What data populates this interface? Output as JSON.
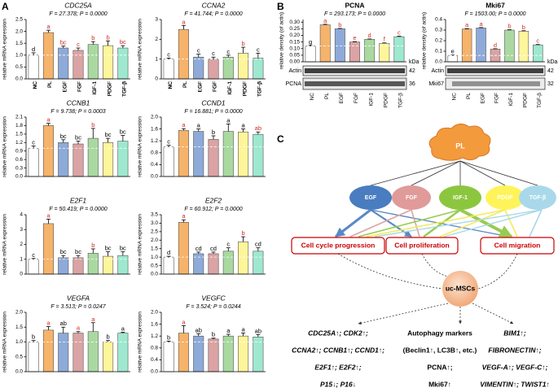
{
  "panel_labels": [
    "A",
    "B",
    "C"
  ],
  "chart_data": [
    {
      "type": "bar",
      "title": "CDC25A",
      "subtitle": "F = 27.378; P = 0.0000",
      "y_label": "relative mRNA expression",
      "categories": [
        "NC",
        "PL",
        "EGF",
        "FGF",
        "IGF-1",
        "PDGF",
        "TGF-β"
      ],
      "colors": [
        "#ffffff",
        "#f5b36b",
        "#8eaad9",
        "#dba3a3",
        "#a9d9a0",
        "#fff59a",
        "#9ee8d0"
      ],
      "values": [
        1.0,
        1.95,
        1.3,
        1.2,
        1.45,
        1.4,
        1.3
      ],
      "errors": [
        0.1,
        0.1,
        0.08,
        0.1,
        0.12,
        0.2,
        0.1
      ],
      "annotations": [
        "d",
        "a",
        "bc",
        "c",
        "b",
        "b",
        "bc"
      ],
      "annotation_colors": [
        "#000",
        "#d62728",
        "#d62728",
        "#d62728",
        "#d62728",
        "#d62728",
        "#d62728"
      ],
      "ylim": [
        0,
        2.5
      ],
      "yticks": [
        {
          "value": 0,
          "label": "0.0"
        },
        0.5,
        {
          "value": 1,
          "label": "1.0"
        },
        1.5,
        {
          "value": 2,
          "label": "2.0"
        },
        2.5
      ]
    },
    {
      "type": "bar",
      "title": "CCNA2",
      "subtitle": "F = 41.744; P = 0.0000",
      "y_label": "relative mRNA expression",
      "categories": [
        "NC",
        "PL",
        "EGF",
        "FGF",
        "IGF-1",
        "PDGF",
        "TGF-β"
      ],
      "colors": [
        "#ffffff",
        "#f5b36b",
        "#8eaad9",
        "#dba3a3",
        "#a9d9a0",
        "#fff59a",
        "#9ee8d0"
      ],
      "values": [
        1.0,
        2.5,
        1.1,
        1.0,
        1.1,
        1.3,
        1.05
      ],
      "errors": [
        0.05,
        0.2,
        0.15,
        0.1,
        0.1,
        0.3,
        0.25
      ],
      "annotations": [
        "c",
        "a",
        "c",
        "c",
        "c",
        "b",
        "c"
      ],
      "annotation_colors": [
        "#000",
        "#d62728",
        "#000",
        "#000",
        "#000",
        "#d62728",
        "#000"
      ],
      "ylim": [
        0,
        3
      ],
      "yticks": [
        0,
        1,
        2,
        3
      ]
    },
    {
      "type": "bar",
      "title": "CCNB1",
      "subtitle": "F = 9.738; P = 0.0003",
      "y_label": "relative mRNA expression",
      "categories": [
        "NC",
        "PL",
        "EGF",
        "FGF",
        "IGF-1",
        "PDGF",
        "TGF-β"
      ],
      "colors": [
        "#ffffff",
        "#f5b36b",
        "#8eaad9",
        "#dba3a3",
        "#a9d9a0",
        "#fff59a",
        "#9ee8d0"
      ],
      "values": [
        1.0,
        1.8,
        1.2,
        1.15,
        1.35,
        1.2,
        1.25
      ],
      "errors": [
        0.08,
        0.08,
        0.1,
        0.1,
        0.35,
        0.15,
        0.2
      ],
      "annotations": [
        "c",
        "a",
        "bc",
        "bc",
        "b",
        "bc",
        "bc"
      ],
      "annotation_colors": [
        "#000",
        "#d62728",
        "#000",
        "#000",
        "#d62728",
        "#000",
        "#000"
      ],
      "ylim": [
        0,
        2.1
      ],
      "yticks": [
        {
          "value": 0,
          "label": "0.0"
        },
        0.3,
        0.6,
        0.9,
        1.2,
        1.5,
        1.8,
        2.1
      ]
    },
    {
      "type": "bar",
      "title": "CCND1",
      "subtitle": "F = 16.881; P = 0.0000",
      "y_label": "relative mRNA expression",
      "categories": [
        "NC",
        "PL",
        "EGF",
        "FGF",
        "IGF-1",
        "PDGF",
        "TGF-β"
      ],
      "colors": [
        "#ffffff",
        "#f5b36b",
        "#8eaad9",
        "#dba3a3",
        "#a9d9a0",
        "#fff59a",
        "#9ee8d0"
      ],
      "values": [
        1.0,
        1.55,
        1.52,
        1.25,
        1.52,
        1.5,
        1.42
      ],
      "errors": [
        0.05,
        0.06,
        0.08,
        0.12,
        0.25,
        0.1,
        0.08
      ],
      "annotations": [
        "c",
        "a",
        "a",
        "b",
        "a",
        "a",
        "ab"
      ],
      "annotation_colors": [
        "#000",
        "#d62728",
        "#000",
        "#000",
        "#000",
        "#000",
        "#d62728"
      ],
      "ylim": [
        0,
        2
      ],
      "yticks": [
        {
          "value": 0,
          "label": "0.0"
        },
        0.4,
        0.8,
        1.2,
        1.6,
        {
          "value": 2,
          "label": "2.0"
        }
      ]
    },
    {
      "type": "bar",
      "title": "E2F1",
      "subtitle": "F = 50.419; P = 0.0000",
      "y_label": "relative mRNA expression",
      "categories": [
        "NC",
        "PL",
        "EGF",
        "FGF",
        "IGF-1",
        "PDGF",
        "TGF-β"
      ],
      "colors": [
        "#ffffff",
        "#f5b36b",
        "#8eaad9",
        "#dba3a3",
        "#a9d9a0",
        "#fff59a",
        "#9ee8d0"
      ],
      "values": [
        1.0,
        3.4,
        1.1,
        1.1,
        1.4,
        1.2,
        1.25
      ],
      "errors": [
        0.05,
        0.3,
        0.15,
        0.15,
        0.3,
        0.3,
        0.25
      ],
      "annotations": [
        "c",
        "a",
        "bc",
        "bc",
        "b",
        "bc",
        "bc"
      ],
      "annotation_colors": [
        "#000",
        "#d62728",
        "#000",
        "#000",
        "#d62728",
        "#000",
        "#000"
      ],
      "ylim": [
        0,
        4
      ],
      "yticks": [
        0,
        1,
        2,
        3,
        4
      ]
    },
    {
      "type": "bar",
      "title": "E2F2",
      "subtitle": "F = 60.912; P = 0.0000",
      "y_label": "relative mRNA expression",
      "categories": [
        "NC",
        "PL",
        "EGF",
        "FGF",
        "IGF-1",
        "PDGF",
        "TGF-β"
      ],
      "colors": [
        "#ffffff",
        "#f5b36b",
        "#8eaad9",
        "#dba3a3",
        "#a9d9a0",
        "#fff59a",
        "#9ee8d0"
      ],
      "values": [
        1.0,
        3.05,
        1.2,
        1.2,
        1.35,
        1.9,
        1.35
      ],
      "errors": [
        0.05,
        0.15,
        0.1,
        0.1,
        0.2,
        0.3,
        0.2
      ],
      "annotations": [
        "d",
        "a",
        "cd",
        "cd",
        "c",
        "b",
        "cd"
      ],
      "annotation_colors": [
        "#000",
        "#d62728",
        "#000",
        "#000",
        "#000",
        "#d62728",
        "#000"
      ],
      "ylim": [
        0,
        3.5
      ],
      "yticks": [
        {
          "value": 0,
          "label": "0.0"
        },
        0.5,
        {
          "value": 1,
          "label": "1.0"
        },
        1.5,
        {
          "value": 2,
          "label": "2.0"
        },
        2.5,
        {
          "value": 3,
          "label": "3.0"
        },
        3.5
      ]
    },
    {
      "type": "bar",
      "title": "VEGFA",
      "subtitle": "F = 3.513; P = 0.0247",
      "y_label": "relative mRNA expression",
      "categories": [
        "NC",
        "PL",
        "EGF",
        "FGF",
        "IGF-1",
        "PDGF",
        "TGF-β"
      ],
      "colors": [
        "#ffffff",
        "#f5b36b",
        "#8eaad9",
        "#dba3a3",
        "#a9d9a0",
        "#fff59a",
        "#9ee8d0"
      ],
      "values": [
        1.0,
        1.4,
        1.3,
        1.3,
        1.35,
        1.0,
        1.3
      ],
      "errors": [
        0.05,
        0.12,
        0.2,
        0.05,
        0.3,
        0.05,
        0.03
      ],
      "annotations": [
        "b",
        "a",
        "ab",
        "a",
        "a",
        "b",
        "a"
      ],
      "annotation_colors": [
        "#000",
        "#d62728",
        "#000",
        "#d62728",
        "#d62728",
        "#000",
        "#000"
      ],
      "ylim": [
        0,
        2
      ],
      "yticks": [
        {
          "value": 0,
          "label": "0.0"
        },
        0.5,
        {
          "value": 1,
          "label": "1.0"
        },
        1.5,
        {
          "value": 2,
          "label": "2.0"
        }
      ]
    },
    {
      "type": "bar",
      "title": "VEGFC",
      "subtitle": "F = 3.524; P = 0.0244",
      "y_label": "relative mRNA expression",
      "categories": [
        "NC",
        "PL",
        "EGF",
        "FGF",
        "IGF-1",
        "PDGF",
        "TGF-β"
      ],
      "colors": [
        "#ffffff",
        "#f5b36b",
        "#8eaad9",
        "#dba3a3",
        "#a9d9a0",
        "#fff59a",
        "#9ee8d0"
      ],
      "values": [
        1.0,
        1.3,
        1.2,
        1.1,
        1.2,
        1.2,
        1.17
      ],
      "errors": [
        0.03,
        0.25,
        0.08,
        0.03,
        0.06,
        0.1,
        0.08
      ],
      "annotations": [
        "b",
        "a",
        "ab",
        "b",
        "a",
        "a",
        "ab"
      ],
      "annotation_colors": [
        "#000",
        "#d62728",
        "#000",
        "#000",
        "#000",
        "#000",
        "#000"
      ],
      "ylim": [
        0,
        2
      ],
      "yticks": [
        {
          "value": 0,
          "label": "0.0"
        },
        0.4,
        0.8,
        1.2,
        1.6,
        {
          "value": 2,
          "label": "2.0"
        }
      ]
    },
    {
      "type": "bar",
      "title": "PCNA",
      "subtitle": "F = 293.173; P = 0.0000",
      "y_label": "relative density (of actin)",
      "categories": [
        "NC",
        "PL",
        "EGF",
        "FGF",
        "IGF-1",
        "PDGF",
        "TGF-β"
      ],
      "colors": [
        "#ffffff",
        "#f5b36b",
        "#8eaad9",
        "#dba3a3",
        "#a9d9a0",
        "#fff59a",
        "#9ee8d0"
      ],
      "values": [
        0.12,
        0.28,
        0.25,
        0.15,
        0.17,
        0.14,
        0.19
      ],
      "errors": [
        0.003,
        0.004,
        0.003,
        0.003,
        0.003,
        0.003,
        0.004
      ],
      "annotations": [
        "g",
        "a",
        "b",
        "e",
        "d",
        "f",
        "c"
      ],
      "annotation_colors": [
        "#000",
        "#d62728",
        "#d62728",
        "#d62728",
        "#d62728",
        "#d62728",
        "#d62728"
      ],
      "ylim": [
        0,
        0.32
      ],
      "yticks": [
        {
          "value": 0,
          "label": "0.00"
        },
        0.05,
        {
          "value": 0.1,
          "label": "0.10"
        },
        0.15,
        {
          "value": 0.2,
          "label": "0.20"
        },
        0.25,
        {
          "value": 0.3,
          "label": "0.30"
        }
      ]
    },
    {
      "type": "bar",
      "title": "Mki67",
      "subtitle": "F = 1503.00; P = 0.0000",
      "y_label": "relative density (of actin)",
      "categories": [
        "NC",
        "PL",
        "EGF",
        "FGF",
        "IGF-1",
        "PDGF",
        "TGF-β"
      ],
      "colors": [
        "#ffffff",
        "#f5b36b",
        "#8eaad9",
        "#dba3a3",
        "#a9d9a0",
        "#fff59a",
        "#9ee8d0"
      ],
      "values": [
        0.06,
        0.31,
        0.32,
        0.12,
        0.3,
        0.29,
        0.16
      ],
      "errors": [
        0.004,
        0.004,
        0.004,
        0.004,
        0.004,
        0.004,
        0.004
      ],
      "annotations": [
        "e",
        "a",
        "a",
        "d",
        "b",
        "b",
        "c"
      ],
      "annotation_colors": [
        "#000",
        "#d62728",
        "#d62728",
        "#d62728",
        "#d62728",
        "#d62728",
        "#d62728"
      ],
      "ylim": [
        0,
        0.4
      ],
      "yticks": [
        {
          "value": 0,
          "label": "0.0"
        },
        0.1,
        0.2,
        0.3,
        0.4
      ]
    }
  ],
  "blots": [
    {
      "unit": "kDa",
      "rows": [
        {
          "name": "Actin",
          "kda": "42"
        },
        {
          "name": "PCNA",
          "kda": "36"
        }
      ]
    },
    {
      "unit": "kDa",
      "rows": [
        {
          "name": "Actin",
          "kda": "42"
        },
        {
          "name": "Mki67",
          "kda": "32"
        }
      ]
    }
  ],
  "diagram": {
    "source": "PL",
    "factors": [
      "EGF",
      "FGF",
      "IGF-1",
      "PDGF",
      "TGF-β"
    ],
    "processes": [
      "Cell cycle progression",
      "Cell proliferation",
      "Cell migration"
    ],
    "target": "uc-MSCs",
    "outcomes": [
      [
        "CDC25A↑; CDK2↑;",
        "CCNA2↑; CCNB1↑; CCND1↑;",
        "E2F1↑; E2F2↑;",
        "P15↓; P16↓"
      ],
      [
        "Autophagy  markers",
        "(Beclin1↑, LC3B↑, etc.)",
        "PCNA↑;",
        "Mki67↑"
      ],
      [
        "BIM1↑;",
        "FIBRONECTIN↑;",
        "VEGF-A↑; VEGF-C↑;",
        "VIMENTIN↑; TWIST1↑"
      ]
    ]
  }
}
